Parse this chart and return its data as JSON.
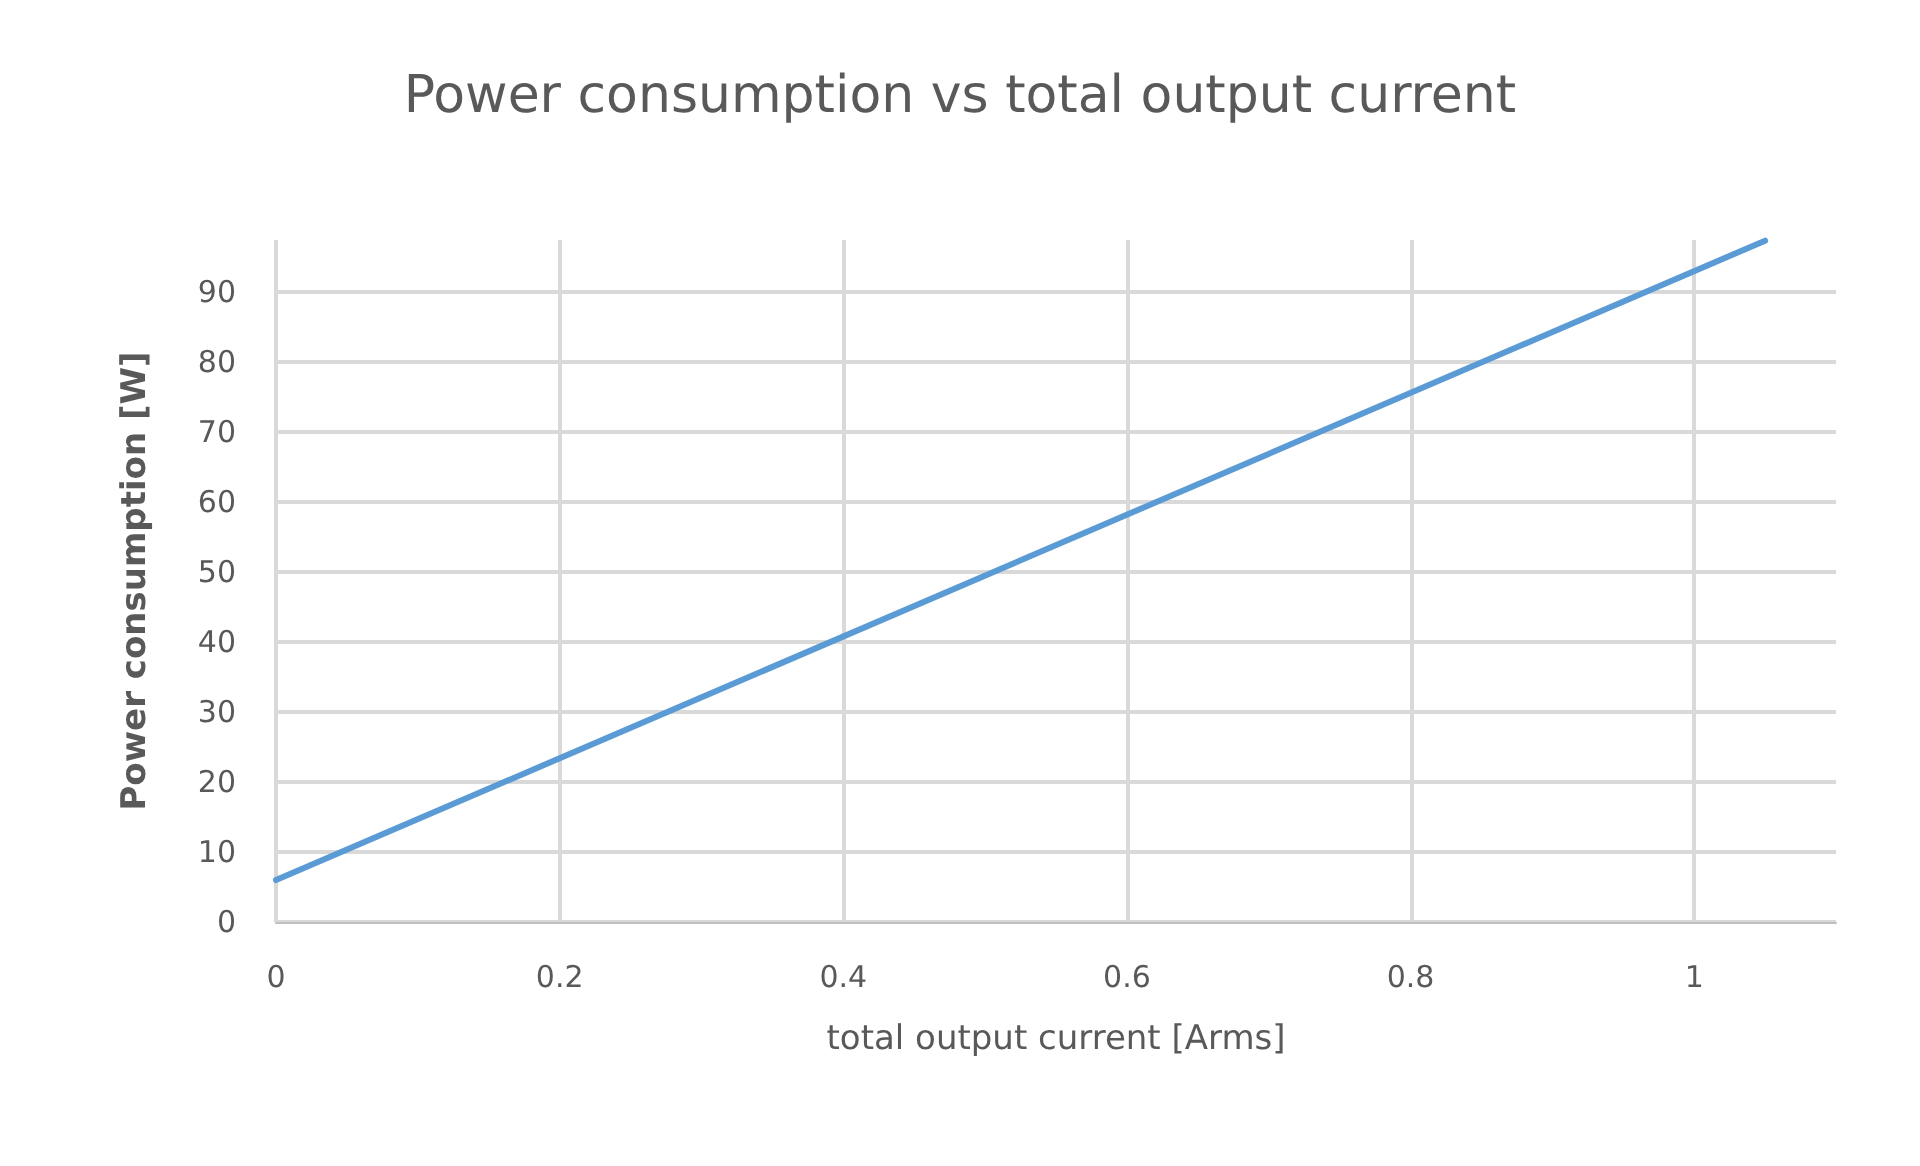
{
  "chart_data": {
    "type": "line",
    "title": "Power consumption vs total output current",
    "xlabel": "total output current [Arms]",
    "ylabel": "Power consumption [W]",
    "x": [
      0,
      1.05
    ],
    "series": [
      {
        "color": "#5b9bd5",
        "values": [
          6,
          97.4
        ]
      }
    ],
    "xlim": [
      0,
      1.1
    ],
    "xticks": [
      0,
      0.2,
      0.4,
      0.6,
      0.8,
      1
    ],
    "ylim": [
      0,
      97.5
    ],
    "yticks": [
      0,
      10,
      20,
      30,
      40,
      50,
      60,
      70,
      80,
      90
    ],
    "grid": true,
    "marker": "none",
    "line_style": "solid"
  }
}
